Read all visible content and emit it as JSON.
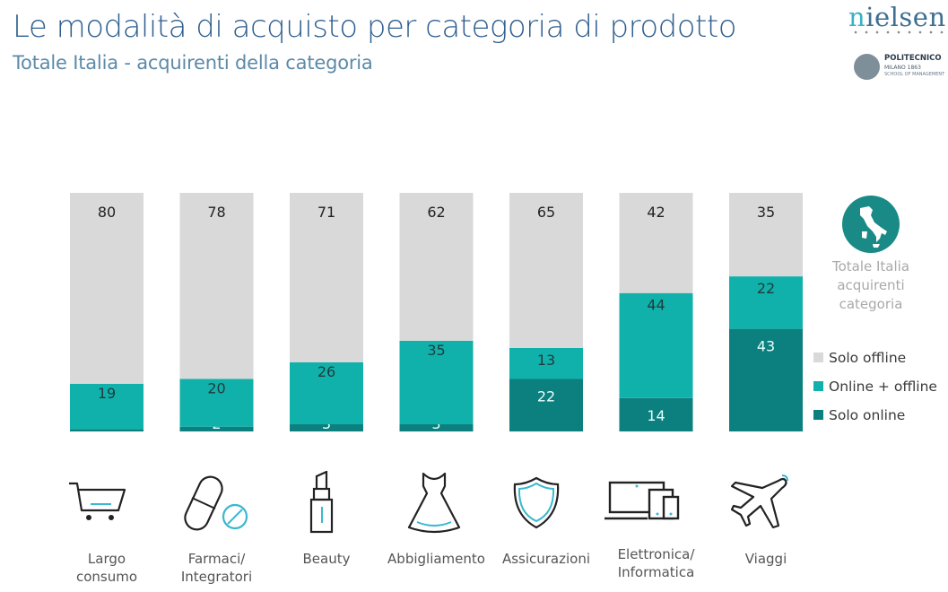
{
  "header": {
    "title": "Le modalità di acquisto per categoria di prodotto",
    "subtitle": "Totale Italia - acquirenti della categoria"
  },
  "logos": {
    "nielsen_first": "n",
    "nielsen_rest": "ielsen",
    "politecnico_name": "POLITECNICO",
    "politecnico_sub1": "MILANO 1863",
    "politecnico_sub2": "SCHOOL OF MANAGEMENT"
  },
  "side_panel": {
    "icon": "italy-map-icon",
    "lines": [
      "Totale Italia",
      "acquirenti",
      "categoria"
    ]
  },
  "colors": {
    "solo_offline": "#d9d9d9",
    "online_offline": "#11b1ab",
    "solo_online": "#0b807e"
  },
  "chart_data": {
    "type": "bar",
    "stacked": true,
    "title": "Le modalità di acquisto per categoria di prodotto",
    "subtitle": "Totale Italia - acquirenti della categoria",
    "xlabel": "",
    "ylabel": "",
    "ylim": [
      0,
      100
    ],
    "grid": false,
    "legend_position": "right",
    "categories": [
      "Largo consumo",
      "Farmaci/ Integratori",
      "Beauty",
      "Abbigliamento",
      "Assicurazioni",
      "Elettronica/ Informatica",
      "Viaggi"
    ],
    "category_lines": [
      [
        "Largo",
        "consumo"
      ],
      [
        "Farmaci/",
        "Integratori"
      ],
      [
        "Beauty"
      ],
      [
        "Abbigliamento"
      ],
      [
        "Assicurazioni"
      ],
      [
        "Elettronica/",
        "Informatica"
      ],
      [
        "Viaggi"
      ]
    ],
    "category_icons": [
      "shopping-cart-icon",
      "pill-icon",
      "lipstick-icon",
      "dress-icon",
      "shield-icon",
      "devices-icon",
      "airplane-icon"
    ],
    "series": [
      {
        "name": "Solo online",
        "values": [
          1,
          2,
          3,
          3,
          22,
          14,
          43
        ]
      },
      {
        "name": "Online + offline",
        "values": [
          19,
          20,
          26,
          35,
          13,
          44,
          22
        ]
      },
      {
        "name": "Solo offline",
        "values": [
          80,
          78,
          71,
          62,
          65,
          42,
          35
        ]
      }
    ],
    "legend": [
      "Solo offline",
      "Online + offline",
      "Solo online"
    ]
  }
}
